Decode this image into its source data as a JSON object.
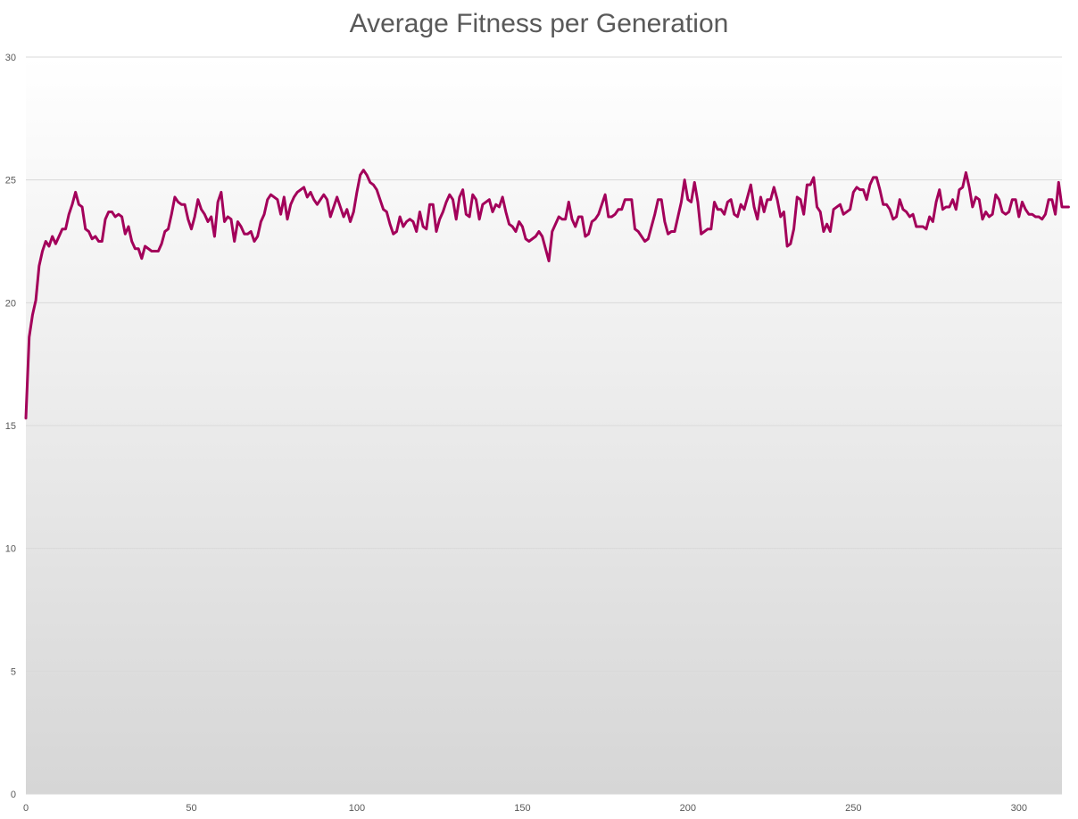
{
  "chart_data": {
    "type": "line",
    "title": "Average Fitness per Generation",
    "xlabel": "",
    "ylabel": "",
    "xlim": [
      0,
      313
    ],
    "ylim": [
      0,
      30
    ],
    "x_ticks": [
      0,
      50,
      100,
      150,
      200,
      250,
      300
    ],
    "y_ticks": [
      0,
      5,
      10,
      15,
      20,
      25,
      30
    ],
    "grid": "horizontal",
    "legend": "none",
    "colors": {
      "line": "#A3005A",
      "grid": "#d9d9d9",
      "bg_top": "#ffffff",
      "bg_bottom": "#d6d6d6",
      "text": "#595959"
    },
    "series": [
      {
        "x_start": 0,
        "values": [
          15.3,
          18.6,
          19.5,
          20.1,
          21.5,
          22.1,
          22.5,
          22.3,
          22.7,
          22.4,
          22.7,
          23.0,
          23.0,
          23.6,
          24.0,
          24.5,
          24.0,
          23.9,
          23.0,
          22.9,
          22.6,
          22.7,
          22.5,
          22.5,
          23.4,
          23.7,
          23.7,
          23.5,
          23.6,
          23.5,
          22.8,
          23.1,
          22.5,
          22.2,
          22.2,
          21.8,
          22.3,
          22.2,
          22.1,
          22.1,
          22.1,
          22.4,
          22.9,
          23.0,
          23.6,
          24.3,
          24.1,
          24.0,
          24.0,
          23.4,
          23.0,
          23.5,
          24.2,
          23.8,
          23.6,
          23.3,
          23.5,
          22.7,
          24.1,
          24.5,
          23.3,
          23.5,
          23.4,
          22.5,
          23.3,
          23.1,
          22.8,
          22.8,
          22.9,
          22.5,
          22.7,
          23.3,
          23.6,
          24.2,
          24.4,
          24.3,
          24.2,
          23.6,
          24.3,
          23.4,
          24.0,
          24.3,
          24.5,
          24.6,
          24.7,
          24.3,
          24.5,
          24.2,
          24.0,
          24.2,
          24.4,
          24.2,
          23.5,
          23.9,
          24.3,
          23.9,
          23.5,
          23.8,
          23.3,
          23.7,
          24.5,
          25.2,
          25.4,
          25.2,
          24.9,
          24.8,
          24.6,
          24.2,
          23.8,
          23.7,
          23.2,
          22.8,
          22.9,
          23.5,
          23.1,
          23.3,
          23.4,
          23.3,
          22.9,
          23.7,
          23.1,
          23.0,
          24.0,
          24.0,
          22.9,
          23.4,
          23.7,
          24.1,
          24.4,
          24.2,
          23.4,
          24.3,
          24.6,
          23.6,
          23.5,
          24.4,
          24.2,
          23.4,
          24.0,
          24.1,
          24.2,
          23.7,
          24.0,
          23.9,
          24.3,
          23.7,
          23.2,
          23.1,
          22.9,
          23.3,
          23.1,
          22.6,
          22.5,
          22.6,
          22.7,
          22.9,
          22.7,
          22.2,
          21.7,
          22.9,
          23.2,
          23.5,
          23.4,
          23.4,
          24.1,
          23.4,
          23.1,
          23.5,
          23.5,
          22.7,
          22.8,
          23.3,
          23.4,
          23.6,
          24.0,
          24.4,
          23.5,
          23.5,
          23.6,
          23.8,
          23.8,
          24.2,
          24.2,
          24.2,
          23.0,
          22.9,
          22.7,
          22.5,
          22.6,
          23.1,
          23.6,
          24.2,
          24.2,
          23.3,
          22.8,
          22.9,
          22.9,
          23.5,
          24.1,
          25.0,
          24.2,
          24.1,
          24.9,
          24.1,
          22.8,
          22.9,
          23.0,
          23.0,
          24.1,
          23.8,
          23.8,
          23.6,
          24.1,
          24.2,
          23.6,
          23.5,
          24.0,
          23.8,
          24.3,
          24.8,
          23.9,
          23.4,
          24.3,
          23.7,
          24.2,
          24.2,
          24.7,
          24.2,
          23.5,
          23.7,
          22.3,
          22.4,
          23.0,
          24.3,
          24.2,
          23.6,
          24.8,
          24.8,
          25.1,
          23.9,
          23.7,
          22.9,
          23.2,
          22.9,
          23.8,
          23.9,
          24.0,
          23.6,
          23.7,
          23.8,
          24.5,
          24.7,
          24.6,
          24.6,
          24.2,
          24.8,
          25.1,
          25.1,
          24.6,
          24.0,
          24.0,
          23.8,
          23.4,
          23.5,
          24.2,
          23.8,
          23.7,
          23.5,
          23.6,
          23.1,
          23.1,
          23.1,
          23.0,
          23.5,
          23.3,
          24.1,
          24.6,
          23.8,
          23.9,
          23.9,
          24.2,
          23.8,
          24.6,
          24.7,
          25.3,
          24.7,
          23.9,
          24.3,
          24.2,
          23.4,
          23.7,
          23.5,
          23.6,
          24.4,
          24.2,
          23.7,
          23.6,
          23.7,
          24.2,
          24.2,
          23.5,
          24.1,
          23.8,
          23.6,
          23.6,
          23.5,
          23.5,
          23.4,
          23.6,
          24.2,
          24.2,
          23.6,
          24.9,
          23.9,
          23.9,
          23.9
        ]
      }
    ]
  }
}
